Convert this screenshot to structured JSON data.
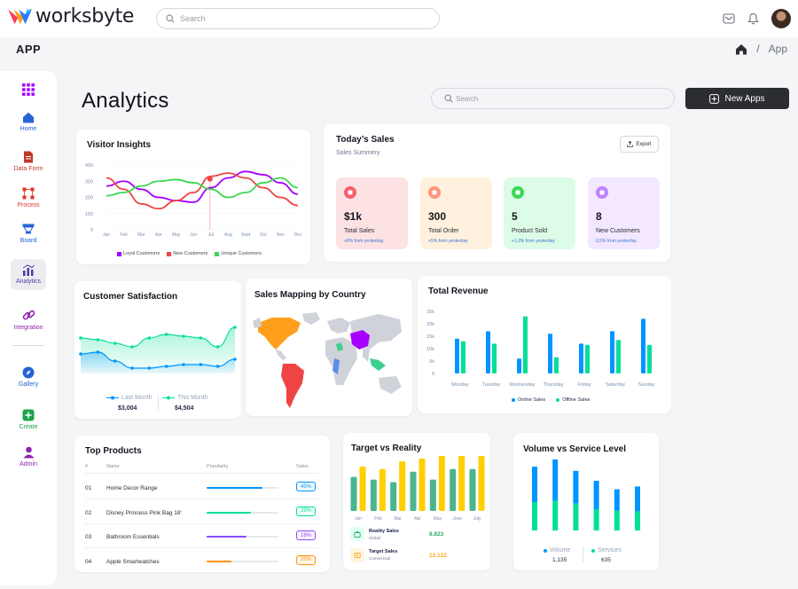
{
  "brand": {
    "name": "worksbyte"
  },
  "top_search": {
    "placeholder": "Search"
  },
  "appbar": {
    "title": "APP",
    "breadcrumb": "App",
    "separator": "/"
  },
  "sidebar": {
    "items": [
      {
        "label": "",
        "icon": "apps-grid-icon"
      },
      {
        "label": "Home",
        "icon": "home-icon"
      },
      {
        "label": "Data Form",
        "icon": "document-icon"
      },
      {
        "label": "Process",
        "icon": "process-icon"
      },
      {
        "label": "Board",
        "icon": "board-icon"
      },
      {
        "label": "Analytics",
        "icon": "analytics-icon"
      },
      {
        "label": "Integration",
        "icon": "link-icon"
      },
      {
        "label": "Gallery",
        "icon": "compass-icon"
      },
      {
        "label": "Create",
        "icon": "plus-icon"
      },
      {
        "label": "Admin",
        "icon": "admin-icon"
      }
    ]
  },
  "page": {
    "title": "Analytics",
    "search_placeholder": "Search",
    "new_button": "New Apps"
  },
  "visitor_insights": {
    "title": "Visitor Insights",
    "legend": [
      "Loyal Customers",
      "New Customers",
      "Unique Customers"
    ]
  },
  "todays_sales": {
    "title": "Today’s Sales",
    "subtitle": "Sales Summery",
    "export_label": "Export",
    "stats": [
      {
        "value": "$1k",
        "label": "Total Sales",
        "change": "+8% from yesterday",
        "bg": "#fde2e4",
        "accent": "#f4606c"
      },
      {
        "value": "300",
        "label": "Total Order",
        "change": "+5% from yesterday",
        "bg": "#fff1dd",
        "accent": "#ff947a"
      },
      {
        "value": "5",
        "label": "Product Sold",
        "change": "+1,2% from yesterday",
        "bg": "#dcfce7",
        "accent": "#3cd856"
      },
      {
        "value": "8",
        "label": "New Customers",
        "change": "0,5% from yesterday",
        "bg": "#f3e8ff",
        "accent": "#bf83ff"
      }
    ]
  },
  "customer_satisfaction": {
    "title": "Customer Satisfaction",
    "last_label": "Last Month",
    "last_value": "$3,004",
    "this_label": "This Month",
    "this_value": "$4,504"
  },
  "sales_mapping": {
    "title": "Sales Mapping by Country"
  },
  "total_revenue": {
    "title": "Total Revenue",
    "legend": [
      "Online Sales",
      "Offline Sales"
    ]
  },
  "top_products": {
    "title": "Top Products",
    "columns": [
      "#",
      "Name",
      "Popularity",
      "Sales"
    ],
    "rows": [
      {
        "num": "01",
        "name": "Home Decor Range",
        "pct": "45%",
        "fill": 0.78,
        "color": "#0095ff",
        "bg": "#f0f9ff"
      },
      {
        "num": "02",
        "name": "Disney Princess Pink Bag 18'",
        "pct": "29%",
        "fill": 0.62,
        "color": "#00e096",
        "bg": "#f0fdf4"
      },
      {
        "num": "03",
        "name": "Bathroom Essentials",
        "pct": "18%",
        "fill": 0.55,
        "color": "#884dff",
        "bg": "#fbf1ff"
      },
      {
        "num": "04",
        "name": "Apple Smartwatches",
        "pct": "25%",
        "fill": 0.35,
        "color": "#ff8f0d",
        "bg": "#fef6e6"
      }
    ]
  },
  "target_vs_reality": {
    "title": "Target vs Reality",
    "reality_label": "Reality Sales",
    "reality_sub": "Global",
    "reality_value": "8.823",
    "target_label": "Target Sales",
    "target_sub": "Commercial",
    "target_value": "12.122"
  },
  "volume_service": {
    "title": "Volume vs Service Level",
    "volume_label": "Volume",
    "volume_value": "1,135",
    "services_label": "Services",
    "services_value": "635"
  },
  "colors": {
    "green": "#00e096",
    "blue": "#0095ff",
    "yellow": "#ffcf00",
    "teal": "#4ab58e",
    "red": "#ef4444",
    "purple": "#a700ff"
  },
  "chart_data": [
    {
      "type": "line",
      "title": "Visitor Insights",
      "categories": [
        "Jan",
        "Feb",
        "Mar",
        "Apr",
        "May",
        "Jun",
        "Jul",
        "Aug",
        "Sept",
        "Oct",
        "Nov",
        "Dec"
      ],
      "ylim": [
        0,
        400
      ],
      "yticks": [
        "400",
        "300",
        "200",
        "100",
        "0"
      ],
      "series": [
        {
          "name": "Loyal Customers",
          "color": "#a700ff",
          "values": [
            270,
            300,
            250,
            200,
            180,
            170,
            260,
            320,
            360,
            340,
            290,
            220
          ]
        },
        {
          "name": "New Customers",
          "color": "#ef4444",
          "values": [
            320,
            250,
            160,
            130,
            180,
            230,
            330,
            350,
            320,
            260,
            200,
            150
          ]
        },
        {
          "name": "Unique Customers",
          "color": "#3cd856",
          "values": [
            210,
            230,
            270,
            300,
            310,
            290,
            250,
            200,
            230,
            290,
            320,
            260
          ]
        }
      ]
    },
    {
      "type": "area",
      "title": "Customer Satisfaction",
      "series": [
        {
          "name": "Last Month",
          "color": "#0095ff",
          "values": [
            2.4,
            2.5,
            2.0,
            1.6,
            1.6,
            1.7,
            1.8,
            1.8,
            1.7,
            2.1
          ]
        },
        {
          "name": "This Month",
          "color": "#07e098",
          "values": [
            3.3,
            3.2,
            3.0,
            2.8,
            3.3,
            3.5,
            3.4,
            3.3,
            2.8,
            3.9
          ]
        }
      ]
    },
    {
      "type": "bar",
      "title": "Total Revenue",
      "categories": [
        "Monday",
        "Tuesday",
        "Wednesday",
        "Thursday",
        "Friday",
        "Saturday",
        "Sunday"
      ],
      "ylim": [
        0,
        25000
      ],
      "yticks": [
        "25k",
        "20k",
        "15k",
        "10k",
        "5k",
        "0"
      ],
      "series": [
        {
          "name": "Online Sales",
          "color": "#0095ff",
          "values": [
            14000,
            17000,
            6000,
            16000,
            12000,
            17000,
            22000
          ]
        },
        {
          "name": "Offline Sales",
          "color": "#00e096",
          "values": [
            13000,
            12000,
            23000,
            6500,
            11500,
            13500,
            11500
          ]
        }
      ]
    },
    {
      "type": "bar",
      "title": "Target vs Reality",
      "categories": [
        "Jan",
        "Feb",
        "Mar",
        "Apr",
        "May",
        "June",
        "July"
      ],
      "series": [
        {
          "name": "Reality Sales",
          "color": "#4ab58e",
          "values": [
            6.5,
            6.0,
            5.5,
            7.5,
            6.0,
            8.0,
            8.0
          ]
        },
        {
          "name": "Target Sales",
          "color": "#ffcf00",
          "values": [
            8.5,
            8.0,
            9.5,
            10.0,
            10.5,
            10.5,
            10.5
          ]
        }
      ]
    },
    {
      "type": "bar",
      "title": "Volume vs Service Level",
      "series": [
        {
          "name": "Services",
          "color": "#00e096",
          "values": [
            40,
            42,
            38,
            30,
            28,
            27
          ]
        },
        {
          "name": "Volume",
          "color": "#0095ff",
          "values": [
            50,
            58,
            46,
            40,
            30,
            35
          ]
        }
      ]
    }
  ]
}
